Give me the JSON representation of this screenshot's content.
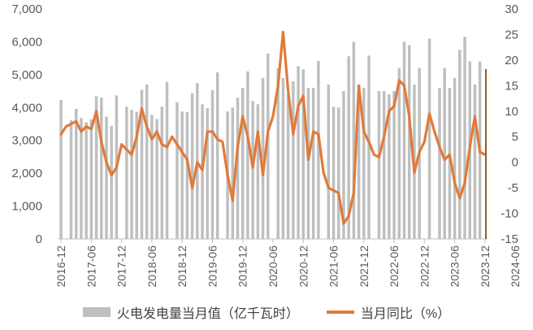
{
  "chart_data": {
    "type": "bar+line",
    "title": "",
    "legend_position": "bottom",
    "grid": false,
    "x_tick_labels": [
      "2016-12",
      "2017-06",
      "2017-12",
      "2018-06",
      "2018-12",
      "2019-06",
      "2019-12",
      "2020-06",
      "2020-12",
      "2021-06",
      "2021-12",
      "2022-06",
      "2022-12",
      "2023-06",
      "2023-12",
      "2024-06"
    ],
    "left_axis": {
      "ylim": [
        0,
        7000
      ],
      "ticks": [
        "0",
        "1,000",
        "2,000",
        "3,000",
        "4,000",
        "5,000",
        "6,000",
        "7,000"
      ]
    },
    "right_axis": {
      "ylim": [
        -15,
        30
      ],
      "ticks": [
        "-15",
        "-10",
        "-5",
        "0",
        "5",
        "10",
        "15",
        "20",
        "25",
        "30"
      ]
    },
    "series": [
      {
        "name": "火电发电量当月值（亿千瓦时）",
        "type": "bar",
        "axis": "left",
        "color": "#bfbfbf",
        "values": [
          4230,
          null,
          3620,
          3960,
          3680,
          3550,
          3640,
          4350,
          4300,
          3720,
          3440,
          4370,
          null,
          4020,
          3930,
          3870,
          4540,
          4700,
          3780,
          3650,
          4030,
          4780,
          null,
          4160,
          3880,
          3860,
          4440,
          4740,
          4100,
          3980,
          4530,
          5070,
          null,
          3880,
          4000,
          4300,
          4600,
          5100,
          4200,
          4100,
          4900,
          5640,
          null,
          5200,
          4900,
          4400,
          4800,
          5260,
          5160,
          4600,
          4600,
          5420,
          null,
          4700,
          4020,
          4000,
          4500,
          5560,
          6000,
          4700,
          4600,
          5580,
          null,
          4500,
          4500,
          4400,
          4500,
          5200,
          6000,
          5900,
          4700,
          5200,
          null,
          6100,
          null,
          4600,
          5200,
          4600,
          4900,
          5760,
          6150,
          5400,
          4700,
          5400,
          null
        ]
      },
      {
        "name": "当月同比（%）",
        "type": "line",
        "axis": "right",
        "color": "#e07a3a",
        "values": [
          5.5,
          7,
          7.5,
          8,
          6,
          7,
          6.5,
          10,
          4,
          0,
          -2.5,
          -1,
          3.5,
          2.5,
          1.5,
          5,
          10.5,
          7,
          4.5,
          6,
          3.5,
          3,
          5,
          3.5,
          2,
          0.5,
          -5,
          0,
          -1.5,
          6,
          6,
          4.5,
          4,
          -2.5,
          -7.5,
          3,
          9,
          5,
          -1,
          6,
          -2.5,
          6,
          9,
          15,
          25.5,
          14,
          5.5,
          11,
          13,
          0.5,
          6,
          5.5,
          -2,
          -5,
          -5.5,
          -6,
          -12,
          -10.5,
          -6,
          15,
          6,
          4,
          1.5,
          1,
          5,
          10,
          11,
          16,
          15,
          9,
          -2,
          2,
          4,
          9.5,
          6,
          3,
          0.5,
          1.5,
          -4,
          -7,
          -4,
          3,
          9,
          2,
          1.5
        ]
      }
    ]
  }
}
